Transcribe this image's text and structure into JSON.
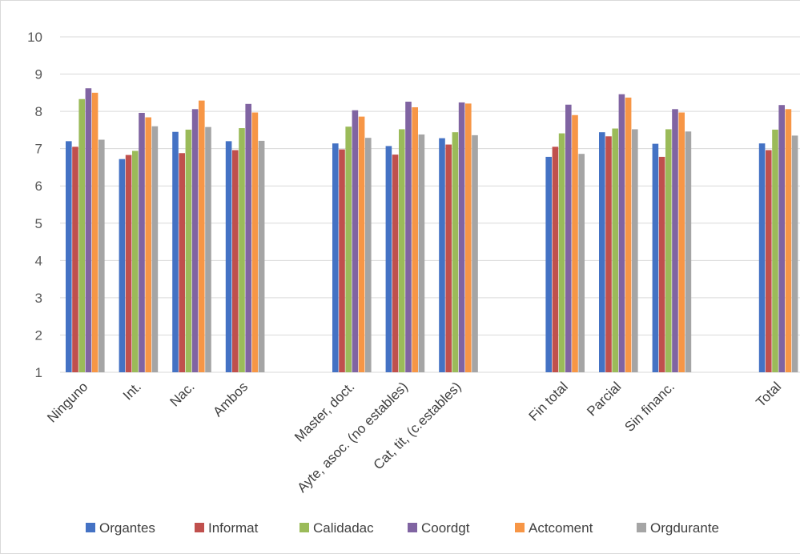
{
  "chart_data": {
    "type": "bar",
    "title": "",
    "xlabel": "",
    "ylabel": "",
    "ylim": [
      1,
      10
    ],
    "yticks": [
      1,
      2,
      3,
      4,
      5,
      6,
      7,
      8,
      9,
      10
    ],
    "grid": true,
    "legend_position": "bottom",
    "categories": [
      "Ninguno",
      "Int.",
      "Nac.",
      "Ambos",
      "",
      "Master, doct.",
      "Ayte, asoc. (no estables)",
      "Cat, tit, (c.estables)",
      "",
      "Fin total",
      "Parcial",
      "Sin financ.",
      "",
      "Total"
    ],
    "series": [
      {
        "name": "Organtes",
        "color": "#4472C4",
        "values": [
          7.2,
          6.72,
          7.45,
          7.2,
          null,
          7.14,
          7.07,
          7.28,
          null,
          6.78,
          7.44,
          7.13,
          null,
          7.14
        ]
      },
      {
        "name": "Informat",
        "color": "#C0504D",
        "values": [
          7.05,
          6.83,
          6.88,
          6.96,
          null,
          6.98,
          6.84,
          7.11,
          null,
          7.05,
          7.33,
          6.78,
          null,
          6.96
        ]
      },
      {
        "name": "Calidadac",
        "color": "#9BBB59",
        "values": [
          8.33,
          6.94,
          7.51,
          7.55,
          null,
          7.59,
          7.52,
          7.44,
          null,
          7.41,
          7.54,
          7.52,
          null,
          7.51
        ]
      },
      {
        "name": "Coordgt",
        "color": "#8064A2",
        "values": [
          8.62,
          7.96,
          8.06,
          8.2,
          null,
          8.03,
          8.26,
          8.24,
          null,
          8.18,
          8.46,
          8.06,
          null,
          8.17
        ]
      },
      {
        "name": "Actcoment",
        "color": "#F79646",
        "values": [
          8.5,
          7.84,
          8.29,
          7.97,
          null,
          7.86,
          8.11,
          8.21,
          null,
          7.9,
          8.37,
          7.97,
          null,
          8.06
        ]
      },
      {
        "name": "Orgdurante",
        "color": "#A5A5A5",
        "values": [
          7.24,
          7.6,
          7.58,
          7.21,
          null,
          7.29,
          7.38,
          7.36,
          null,
          6.86,
          7.52,
          7.46,
          null,
          7.35
        ]
      }
    ]
  }
}
